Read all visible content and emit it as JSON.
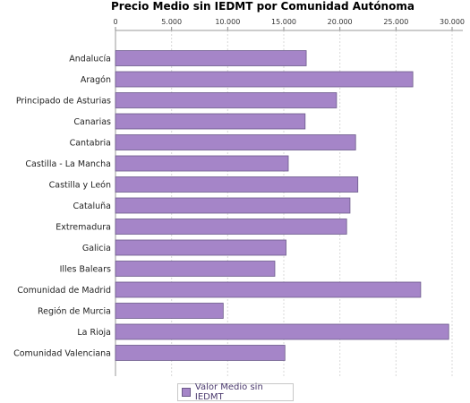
{
  "chart_data": {
    "type": "bar",
    "orientation": "horizontal",
    "title": "Precio Medio sin IEDMT por Comunidad Autónoma",
    "categories": [
      "Andalucía",
      "Aragón",
      "Principado de Asturias",
      "Canarias",
      "Cantabria",
      "Castilla - La Mancha",
      "Castilla y León",
      "Cataluña",
      "Extremadura",
      "Galicia",
      "Illes Balears",
      "Comunidad de Madrid",
      "Región de Murcia",
      "La Rioja",
      "Comunidad Valenciana"
    ],
    "series": [
      {
        "name": "Valor Medio sin IEDMT",
        "values": [
          17000,
          26500,
          19700,
          16900,
          21400,
          15400,
          21600,
          20900,
          20600,
          15200,
          14200,
          27200,
          9600,
          29700,
          15100
        ]
      }
    ],
    "xlim": [
      0,
      30000
    ],
    "xticks": [
      "0",
      "5.000",
      "10.000",
      "15.000",
      "20.000",
      "25.000",
      "30.000"
    ],
    "xtick_values": [
      0,
      5000,
      10000,
      15000,
      20000,
      25000,
      30000
    ],
    "axis_position": "top",
    "grid": true,
    "legend_position": "bottom",
    "colors": {
      "bar_fill": "#a585c8",
      "bar_stroke": "#6b5a8a",
      "grid": "#d9d9d9",
      "legend_text": "#4b3a6e"
    }
  }
}
